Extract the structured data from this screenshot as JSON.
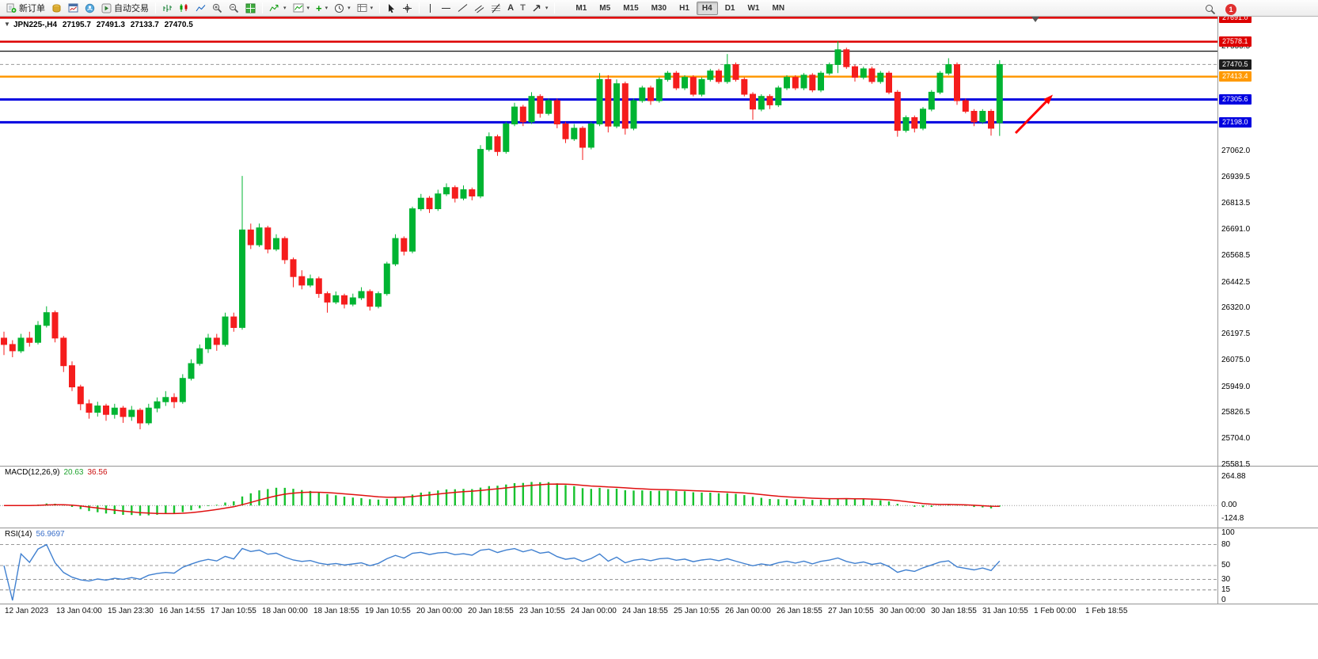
{
  "toolbar": {
    "new_order": "新订单",
    "autotrading": "自动交易",
    "text_tool": "A",
    "label_tool": "T",
    "timeframes": [
      "M1",
      "M5",
      "M15",
      "M30",
      "H1",
      "H4",
      "D1",
      "W1",
      "MN"
    ],
    "active_timeframe": "H4",
    "badge": "1"
  },
  "chart": {
    "header": {
      "symbol_period": "JPN225-,H4",
      "open": "27195.7",
      "high": "27491.3",
      "low": "27133.7",
      "close": "27470.5"
    },
    "current_price": 27470.5,
    "hlines": [
      {
        "price": 27691.0,
        "color": "#dd0000",
        "width": 2.5
      },
      {
        "price": 27578.1,
        "color": "#dd0000",
        "width": 2.5
      },
      {
        "price": 27533.5,
        "color": "#111111",
        "width": 1.2
      },
      {
        "price": 27413.4,
        "color": "#ff9900",
        "width": 2.5
      },
      {
        "price": 27305.6,
        "color": "#0000e0",
        "width": 3
      },
      {
        "price": 27198.0,
        "color": "#0000e0",
        "width": 3
      }
    ],
    "price_axis": {
      "plain_labels": [
        27555.5,
        27062.0,
        26939.5,
        26813.5,
        26691.0,
        26568.5,
        26442.5,
        26320.0,
        26197.5,
        26075.0,
        25949.0,
        25826.5,
        25704.0,
        25581.5
      ],
      "tags": [
        {
          "label": "27691.0",
          "price": 27691.0,
          "color": "#dd0000",
          "current": false
        },
        {
          "label": "27578.1",
          "price": 27578.1,
          "color": "#dd0000",
          "current": false
        },
        {
          "label": "27470.5",
          "price": 27470.5,
          "color": "#1c1c1c",
          "current": true
        },
        {
          "label": "27413.4",
          "price": 27413.4,
          "color": "#ff9900",
          "current": false
        },
        {
          "label": "27305.6",
          "price": 27305.6,
          "color": "#0000e0",
          "current": false
        },
        {
          "label": "27198.0",
          "price": 27198.0,
          "color": "#0000e0",
          "current": false
        }
      ]
    }
  },
  "macd": {
    "label": "MACD(12,26,9)",
    "value_main": "20.63",
    "value_signal": "36.56",
    "fast": 12,
    "slow": 26,
    "signal_period": 9,
    "axis_labels": [
      "264.88",
      "0.00",
      "-124.8"
    ],
    "histogram_color": "#17c22e",
    "signal_color": "#e01010"
  },
  "rsi": {
    "label": "RSI(14)",
    "value": "56.9697",
    "period": 14,
    "levels": [
      80,
      50,
      30,
      15
    ],
    "axis_labels": [
      "100",
      "80",
      "50",
      "30",
      "15",
      "0"
    ],
    "line_color": "#4080d0"
  },
  "chart_data": {
    "type": "candlestick",
    "symbol": "JPN225-",
    "period": "H4",
    "up_color": "#00b432",
    "down_color": "#f51d1d",
    "annotation_arrow_color": "#ff0000",
    "x_labels": [
      "12 Jan 2023",
      "13 Jan 04:00",
      "15 Jan 23:30",
      "16 Jan 14:55",
      "17 Jan 10:55",
      "18 Jan 00:00",
      "18 Jan 18:55",
      "19 Jan 10:55",
      "20 Jan 00:00",
      "20 Jan 18:55",
      "23 Jan 10:55",
      "24 Jan 00:00",
      "24 Jan 18:55",
      "25 Jan 10:55",
      "26 Jan 00:00",
      "26 Jan 18:55",
      "27 Jan 10:55",
      "30 Jan 00:00",
      "30 Jan 18:55",
      "31 Jan 10:55",
      "1 Feb 00:00",
      "1 Feb 18:55"
    ],
    "candles": [
      [
        26180,
        26210,
        26100,
        26150
      ],
      [
        26150,
        26170,
        26090,
        26120
      ],
      [
        26120,
        26200,
        26110,
        26180
      ],
      [
        26180,
        26210,
        26140,
        26160
      ],
      [
        26160,
        26260,
        26150,
        26240
      ],
      [
        26240,
        26330,
        26230,
        26300
      ],
      [
        26300,
        26310,
        26160,
        26180
      ],
      [
        26180,
        26190,
        26020,
        26050
      ],
      [
        26050,
        26070,
        25930,
        25950
      ],
      [
        25950,
        25960,
        25840,
        25870
      ],
      [
        25870,
        25890,
        25800,
        25830
      ],
      [
        25830,
        25880,
        25810,
        25860
      ],
      [
        25860,
        25870,
        25790,
        25820
      ],
      [
        25820,
        25870,
        25800,
        25850
      ],
      [
        25850,
        25860,
        25780,
        25810
      ],
      [
        25810,
        25860,
        25790,
        25840
      ],
      [
        25840,
        25850,
        25750,
        25780
      ],
      [
        25780,
        25870,
        25770,
        25850
      ],
      [
        25850,
        25900,
        25830,
        25880
      ],
      [
        25880,
        25930,
        25860,
        25900
      ],
      [
        25900,
        25920,
        25850,
        25880
      ],
      [
        25880,
        26010,
        25870,
        25990
      ],
      [
        25990,
        26080,
        25980,
        26060
      ],
      [
        26060,
        26150,
        26050,
        26130
      ],
      [
        26130,
        26200,
        26110,
        26180
      ],
      [
        26180,
        26200,
        26120,
        26150
      ],
      [
        26150,
        26300,
        26140,
        26280
      ],
      [
        26280,
        26300,
        26210,
        26230
      ],
      [
        26230,
        26945,
        26220,
        26690
      ],
      [
        26690,
        26720,
        26600,
        26620
      ],
      [
        26620,
        26720,
        26610,
        26700
      ],
      [
        26700,
        26710,
        26580,
        26600
      ],
      [
        26600,
        26670,
        26590,
        26650
      ],
      [
        26650,
        26660,
        26530,
        26550
      ],
      [
        26550,
        26560,
        26420,
        26470
      ],
      [
        26470,
        26500,
        26410,
        26430
      ],
      [
        26430,
        26480,
        26420,
        26460
      ],
      [
        26460,
        26470,
        26370,
        26390
      ],
      [
        26390,
        26400,
        26300,
        26350
      ],
      [
        26350,
        26400,
        26340,
        26380
      ],
      [
        26380,
        26390,
        26320,
        26340
      ],
      [
        26340,
        26390,
        26330,
        26370
      ],
      [
        26370,
        26420,
        26360,
        26400
      ],
      [
        26400,
        26410,
        26310,
        26330
      ],
      [
        26330,
        26400,
        26320,
        26390
      ],
      [
        26390,
        26540,
        26380,
        26530
      ],
      [
        26530,
        26670,
        26520,
        26650
      ],
      [
        26650,
        26660,
        26570,
        26590
      ],
      [
        26590,
        26800,
        26580,
        26790
      ],
      [
        26790,
        26860,
        26780,
        26840
      ],
      [
        26840,
        26850,
        26770,
        26790
      ],
      [
        26790,
        26880,
        26780,
        26860
      ],
      [
        26860,
        26910,
        26850,
        26890
      ],
      [
        26890,
        26900,
        26820,
        26840
      ],
      [
        26840,
        26900,
        26830,
        26880
      ],
      [
        26880,
        26890,
        26830,
        26850
      ],
      [
        26850,
        27090,
        26840,
        27070
      ],
      [
        27070,
        27150,
        27060,
        27130
      ],
      [
        27130,
        27140,
        27040,
        27060
      ],
      [
        27060,
        27200,
        27050,
        27190
      ],
      [
        27190,
        27290,
        27180,
        27270
      ],
      [
        27270,
        27280,
        27180,
        27200
      ],
      [
        27200,
        27340,
        27190,
        27320
      ],
      [
        27320,
        27330,
        27220,
        27240
      ],
      [
        27240,
        27310,
        27230,
        27300
      ],
      [
        27300,
        27310,
        27170,
        27190
      ],
      [
        27190,
        27200,
        27100,
        27120
      ],
      [
        27120,
        27190,
        27110,
        27170
      ],
      [
        27170,
        27180,
        27020,
        27080
      ],
      [
        27080,
        27200,
        27070,
        27190
      ],
      [
        27190,
        27430,
        27180,
        27400
      ],
      [
        27400,
        27420,
        27150,
        27180
      ],
      [
        27180,
        27400,
        27170,
        27380
      ],
      [
        27380,
        27390,
        27140,
        27170
      ],
      [
        27170,
        27310,
        27160,
        27300
      ],
      [
        27300,
        27370,
        27290,
        27360
      ],
      [
        27360,
        27370,
        27280,
        27300
      ],
      [
        27300,
        27410,
        27290,
        27400
      ],
      [
        27400,
        27440,
        27390,
        27430
      ],
      [
        27430,
        27440,
        27350,
        27360
      ],
      [
        27360,
        27420,
        27350,
        27410
      ],
      [
        27410,
        27420,
        27320,
        27330
      ],
      [
        27330,
        27410,
        27320,
        27400
      ],
      [
        27400,
        27450,
        27390,
        27440
      ],
      [
        27440,
        27450,
        27380,
        27390
      ],
      [
        27390,
        27520,
        27380,
        27470
      ],
      [
        27470,
        27480,
        27390,
        27400
      ],
      [
        27400,
        27410,
        27320,
        27330
      ],
      [
        27330,
        27340,
        27210,
        27260
      ],
      [
        27260,
        27330,
        27250,
        27320
      ],
      [
        27320,
        27330,
        27260,
        27280
      ],
      [
        27280,
        27370,
        27270,
        27360
      ],
      [
        27360,
        27420,
        27350,
        27410
      ],
      [
        27410,
        27420,
        27350,
        27360
      ],
      [
        27360,
        27430,
        27350,
        27420
      ],
      [
        27420,
        27430,
        27340,
        27350
      ],
      [
        27350,
        27440,
        27340,
        27430
      ],
      [
        27430,
        27480,
        27420,
        27470
      ],
      [
        27470,
        27580,
        27430,
        27540
      ],
      [
        27540,
        27550,
        27450,
        27460
      ],
      [
        27460,
        27470,
        27390,
        27410
      ],
      [
        27410,
        27460,
        27400,
        27450
      ],
      [
        27450,
        27460,
        27380,
        27390
      ],
      [
        27390,
        27440,
        27380,
        27430
      ],
      [
        27430,
        27440,
        27330,
        27340
      ],
      [
        27340,
        27350,
        27130,
        27160
      ],
      [
        27160,
        27230,
        27150,
        27220
      ],
      [
        27220,
        27230,
        27150,
        27170
      ],
      [
        27170,
        27270,
        27160,
        27260
      ],
      [
        27260,
        27350,
        27250,
        27340
      ],
      [
        27340,
        27440,
        27330,
        27430
      ],
      [
        27430,
        27500,
        27420,
        27470
      ],
      [
        27470,
        27480,
        27280,
        27300
      ],
      [
        27300,
        27310,
        27240,
        27250
      ],
      [
        27250,
        27260,
        27180,
        27200
      ],
      [
        27200,
        27260,
        27190,
        27250
      ],
      [
        27250,
        27260,
        27135,
        27170
      ],
      [
        27195.7,
        27491.3,
        27133.7,
        27470.5
      ]
    ]
  }
}
